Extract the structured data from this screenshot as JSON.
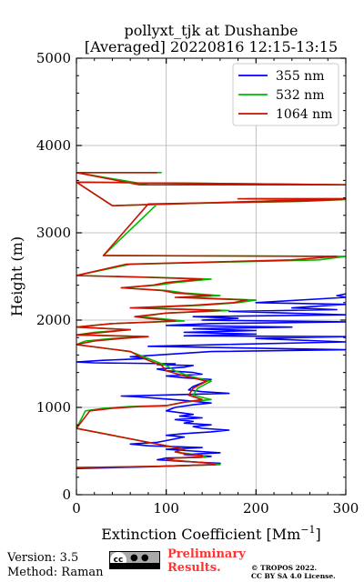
{
  "chart_data": {
    "type": "line",
    "title_line1": "pollyxt_tjk at Dushanbe",
    "title_line2": "[Averaged] 20220816 12:15-13:15",
    "xlabel": "Extinction Coefficient [Mm",
    "xlabel_sup": "−1",
    "xlabel_tail": "]",
    "ylabel": "Height (m)",
    "xlim": [
      0,
      300
    ],
    "ylim": [
      0,
      5000
    ],
    "x_ticks": [
      0,
      100,
      200,
      300
    ],
    "y_ticks": [
      0,
      1000,
      2000,
      3000,
      4000,
      5000
    ],
    "grid": true,
    "legend_position": "top-right",
    "series": [
      {
        "name": "355 nm",
        "color": "#0000ff",
        "points": [
          [
            0,
            300
          ],
          [
            80,
            320
          ],
          [
            150,
            345
          ],
          [
            160,
            360
          ],
          [
            120,
            380
          ],
          [
            90,
            400
          ],
          [
            100,
            420
          ],
          [
            140,
            430
          ],
          [
            150,
            440
          ],
          [
            120,
            460
          ],
          [
            160,
            480
          ],
          [
            130,
            500
          ],
          [
            100,
            520
          ],
          [
            140,
            540
          ],
          [
            80,
            560
          ],
          [
            60,
            580
          ],
          [
            90,
            600
          ],
          [
            110,
            640
          ],
          [
            120,
            660
          ],
          [
            100,
            680
          ],
          [
            120,
            700
          ],
          [
            150,
            720
          ],
          [
            170,
            740
          ],
          [
            140,
            760
          ],
          [
            130,
            780
          ],
          [
            150,
            800
          ],
          [
            120,
            820
          ],
          [
            130,
            840
          ],
          [
            110,
            860
          ],
          [
            140,
            880
          ],
          [
            115,
            900
          ],
          [
            130,
            920
          ],
          [
            100,
            960
          ],
          [
            110,
            1000
          ],
          [
            130,
            1030
          ],
          [
            150,
            1050
          ],
          [
            120,
            1080
          ],
          [
            95,
            1100
          ],
          [
            70,
            1120
          ],
          [
            50,
            1130
          ],
          [
            90,
            1140
          ],
          [
            130,
            1150
          ],
          [
            170,
            1160
          ],
          [
            140,
            1180
          ],
          [
            125,
            1200
          ],
          [
            130,
            1240
          ],
          [
            140,
            1280
          ],
          [
            150,
            1320
          ],
          [
            120,
            1340
          ],
          [
            100,
            1360
          ],
          [
            140,
            1380
          ],
          [
            130,
            1400
          ],
          [
            100,
            1420
          ],
          [
            90,
            1440
          ],
          [
            120,
            1460
          ],
          [
            130,
            1480
          ],
          [
            90,
            1490
          ],
          [
            110,
            1500
          ],
          [
            20,
            1510
          ],
          [
            0,
            1520
          ],
          [
            30,
            1540
          ],
          [
            80,
            1560
          ],
          [
            60,
            1580
          ],
          [
            150,
            1640
          ],
          [
            300,
            1660
          ],
          [
            80,
            1700
          ],
          [
            160,
            1720
          ],
          [
            300,
            1750
          ],
          [
            200,
            1790
          ],
          [
            300,
            1810
          ],
          [
            120,
            1820
          ],
          [
            200,
            1840
          ],
          [
            120,
            1860
          ],
          [
            200,
            1880
          ],
          [
            130,
            1900
          ],
          [
            240,
            1920
          ],
          [
            100,
            1940
          ],
          [
            150,
            1960
          ],
          [
            300,
            1980
          ],
          [
            140,
            2000
          ],
          [
            180,
            2020
          ],
          [
            130,
            2040
          ],
          [
            300,
            2060
          ],
          [
            170,
            2100
          ],
          [
            290,
            2120
          ],
          [
            240,
            2140
          ],
          [
            300,
            2180
          ],
          [
            200,
            2200
          ],
          [
            300,
            2260
          ],
          [
            290,
            2280
          ],
          [
            300,
            2300
          ]
        ]
      },
      {
        "name": "532 nm",
        "color": "#00bb00",
        "points": [
          [
            0,
            310
          ],
          [
            90,
            325
          ],
          [
            160,
            345
          ],
          [
            150,
            360
          ],
          [
            125,
            380
          ],
          [
            100,
            400
          ],
          [
            110,
            420
          ],
          [
            145,
            430
          ],
          [
            140,
            450
          ],
          [
            125,
            470
          ],
          [
            110,
            490
          ],
          [
            120,
            520
          ],
          [
            100,
            560
          ],
          [
            80,
            600
          ],
          [
            40,
            680
          ],
          [
            0,
            760
          ],
          [
            10,
            960
          ],
          [
            30,
            990
          ],
          [
            60,
            1010
          ],
          [
            100,
            1020
          ],
          [
            120,
            1060
          ],
          [
            150,
            1090
          ],
          [
            130,
            1140
          ],
          [
            135,
            1220
          ],
          [
            150,
            1300
          ],
          [
            125,
            1360
          ],
          [
            110,
            1420
          ],
          [
            100,
            1480
          ],
          [
            80,
            1560
          ],
          [
            60,
            1640
          ],
          [
            0,
            1720
          ],
          [
            10,
            1760
          ],
          [
            40,
            1790
          ],
          [
            80,
            1810
          ],
          [
            0,
            1830
          ],
          [
            20,
            1860
          ],
          [
            60,
            1890
          ],
          [
            0,
            1920
          ],
          [
            40,
            1960
          ],
          [
            120,
            1990
          ],
          [
            90,
            2020
          ],
          [
            70,
            2040
          ],
          [
            100,
            2080
          ],
          [
            170,
            2110
          ],
          [
            70,
            2140
          ],
          [
            140,
            2170
          ],
          [
            180,
            2200
          ],
          [
            200,
            2230
          ],
          [
            120,
            2260
          ],
          [
            160,
            2280
          ],
          [
            120,
            2310
          ],
          [
            100,
            2340
          ],
          [
            50,
            2370
          ],
          [
            90,
            2400
          ],
          [
            110,
            2430
          ],
          [
            150,
            2470
          ],
          [
            90,
            2490
          ],
          [
            0,
            2510
          ],
          [
            60,
            2640
          ],
          [
            270,
            2690
          ],
          [
            300,
            2730
          ],
          [
            30,
            2740
          ],
          [
            90,
            3330
          ],
          [
            250,
            3360
          ],
          [
            300,
            3380
          ],
          [
            190,
            3390
          ],
          [
            300,
            3390
          ],
          [
            40,
            3310
          ],
          [
            0,
            3580
          ],
          [
            300,
            3550
          ],
          [
            80,
            3550
          ],
          [
            0,
            3690
          ],
          [
            95,
            3690
          ]
        ]
      },
      {
        "name": "1064 nm",
        "color": "#cc1100",
        "points": [
          [
            0,
            310
          ],
          [
            90,
            325
          ],
          [
            155,
            345
          ],
          [
            150,
            360
          ],
          [
            125,
            380
          ],
          [
            100,
            400
          ],
          [
            110,
            420
          ],
          [
            140,
            430
          ],
          [
            140,
            450
          ],
          [
            120,
            470
          ],
          [
            110,
            490
          ],
          [
            120,
            520
          ],
          [
            100,
            560
          ],
          [
            80,
            600
          ],
          [
            40,
            680
          ],
          [
            0,
            760
          ],
          [
            15,
            960
          ],
          [
            40,
            990
          ],
          [
            70,
            1010
          ],
          [
            100,
            1020
          ],
          [
            120,
            1060
          ],
          [
            140,
            1090
          ],
          [
            125,
            1140
          ],
          [
            130,
            1220
          ],
          [
            145,
            1300
          ],
          [
            120,
            1360
          ],
          [
            100,
            1420
          ],
          [
            95,
            1480
          ],
          [
            75,
            1560
          ],
          [
            60,
            1640
          ],
          [
            0,
            1720
          ],
          [
            20,
            1760
          ],
          [
            50,
            1790
          ],
          [
            80,
            1810
          ],
          [
            0,
            1830
          ],
          [
            30,
            1860
          ],
          [
            60,
            1890
          ],
          [
            0,
            1920
          ],
          [
            40,
            1960
          ],
          [
            110,
            1990
          ],
          [
            80,
            2020
          ],
          [
            65,
            2040
          ],
          [
            100,
            2080
          ],
          [
            160,
            2110
          ],
          [
            60,
            2140
          ],
          [
            130,
            2170
          ],
          [
            175,
            2200
          ],
          [
            190,
            2230
          ],
          [
            110,
            2260
          ],
          [
            150,
            2280
          ],
          [
            110,
            2310
          ],
          [
            95,
            2340
          ],
          [
            50,
            2370
          ],
          [
            85,
            2400
          ],
          [
            100,
            2430
          ],
          [
            140,
            2470
          ],
          [
            80,
            2490
          ],
          [
            0,
            2510
          ],
          [
            55,
            2640
          ],
          [
            240,
            2690
          ],
          [
            290,
            2730
          ],
          [
            30,
            2740
          ],
          [
            80,
            3330
          ],
          [
            240,
            3360
          ],
          [
            295,
            3380
          ],
          [
            180,
            3390
          ],
          [
            300,
            3390
          ],
          [
            40,
            3310
          ],
          [
            0,
            3580
          ],
          [
            300,
            3550
          ],
          [
            70,
            3550
          ],
          [
            0,
            3690
          ],
          [
            90,
            3690
          ]
        ]
      }
    ]
  },
  "footer": {
    "version": "Version: 3.5",
    "method": "Method: Raman",
    "cc_label": "cc",
    "cc_icons": "BY SA",
    "preliminary_line1": "Preliminary",
    "preliminary_line2": "Results.",
    "copyright_line1": "© TROPOS 2022.",
    "copyright_line2": "CC BY SA 4.0 License."
  }
}
